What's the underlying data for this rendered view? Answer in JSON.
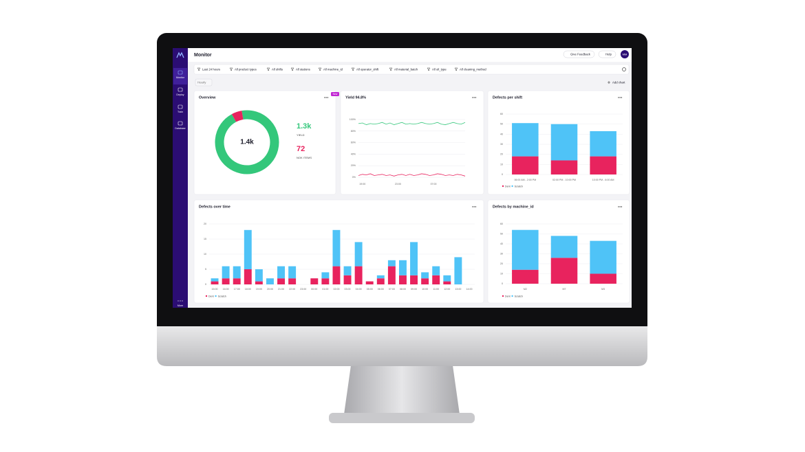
{
  "sidebar": {
    "items": [
      "Monitor",
      "Deploy",
      "Train",
      "Database"
    ],
    "more": "More"
  },
  "header": {
    "title": "Monitor",
    "feedback": "Give Feedback",
    "help": "Help",
    "avatar": "MM"
  },
  "filters": [
    "Last 24 hours",
    "All product types",
    "All shifts",
    "All stations",
    "All machine_id",
    "All operator_shift",
    "All material_batch",
    "All oil_type",
    "All cleaning_method"
  ],
  "toolbar": {
    "interval": "Hourly",
    "add_chart": "Add chart"
  },
  "chart_data": [
    {
      "type": "donut",
      "title": "Overview",
      "badge": "New",
      "center_label": "1.4k",
      "categories": [
        "YIELD",
        "NOK ITEMS"
      ],
      "values": [
        1300,
        72
      ],
      "value_labels": [
        "1.3k",
        "72"
      ],
      "colors": [
        "#34c77b",
        "#e8235e"
      ]
    },
    {
      "type": "line",
      "title": "Yield 94.8%",
      "categories": [
        null,
        "19:00",
        null,
        null,
        null,
        null,
        null,
        null,
        null,
        null,
        "23:00",
        null,
        null,
        null,
        null,
        null,
        null,
        null,
        null,
        "07:00",
        null,
        null,
        null,
        null,
        null,
        null,
        null,
        null
      ],
      "ylim": [
        0,
        100
      ],
      "yticks": [
        {
          "value": 0,
          "label": "0%"
        },
        {
          "value": 20,
          "label": "20%"
        },
        {
          "value": 40,
          "label": "40%"
        },
        {
          "value": 60,
          "label": "60%"
        },
        {
          "value": 80,
          "label": "80%"
        },
        {
          "value": 100,
          "label": "100%"
        }
      ],
      "series": [
        {
          "name": "Yield",
          "color": "#34c77b",
          "values": [
            93,
            94,
            91,
            93,
            92,
            93,
            95,
            92,
            94,
            91,
            93,
            95,
            92,
            93,
            92,
            93,
            95,
            93,
            92,
            93,
            95,
            92,
            91,
            93,
            95,
            93,
            92,
            95
          ]
        },
        {
          "name": "NOK",
          "color": "#e8235e",
          "values": [
            3,
            5,
            4,
            6,
            3,
            4,
            5,
            3,
            4,
            2,
            4,
            5,
            3,
            5,
            3,
            4,
            6,
            5,
            3,
            4,
            6,
            5,
            3,
            4,
            3,
            5,
            4,
            2
          ]
        }
      ]
    },
    {
      "type": "bar",
      "title": "Defects per shift",
      "categories": [
        "06:00 AM - 2:00 PM",
        "02:00 PM - 10:00 PM",
        "10:00 PM - 6:00 AM"
      ],
      "ylim": [
        0,
        60
      ],
      "yticks": [
        0,
        10,
        20,
        30,
        40,
        50,
        60
      ],
      "series": [
        {
          "name": "Dent",
          "color": "#e8235e",
          "values": [
            18,
            14,
            18
          ]
        },
        {
          "name": "Scratch",
          "color": "#4fc3f7",
          "values": [
            33,
            36,
            25
          ]
        }
      ]
    },
    {
      "type": "bar",
      "title": "Defects over time",
      "categories": [
        "15:00",
        "16:00",
        "17:00",
        "18:00",
        "19:00",
        "20:00",
        "21:00",
        "22:00",
        "23:00",
        "00:00",
        "01:00",
        "02:00",
        "03:00",
        "04:00",
        "05:00",
        "06:00",
        "07:00",
        "08:00",
        "09:00",
        "10:00",
        "11:00",
        "12:00",
        "13:00",
        "14:00"
      ],
      "ylim": [
        0,
        20
      ],
      "yticks": [
        0,
        5,
        10,
        15,
        20
      ],
      "series": [
        {
          "name": "Dent",
          "color": "#e8235e",
          "values": [
            1,
            2,
            2,
            5,
            1,
            0,
            2,
            2,
            0,
            2,
            2,
            6,
            3,
            6,
            1,
            2,
            6,
            3,
            3,
            2,
            3,
            1,
            0,
            0
          ]
        },
        {
          "name": "Scratch",
          "color": "#4fc3f7",
          "values": [
            1,
            4,
            4,
            13,
            4,
            2,
            4,
            4,
            0,
            0,
            2,
            12,
            3,
            8,
            0,
            1,
            2,
            5,
            11,
            2,
            3,
            2,
            9,
            0
          ]
        }
      ]
    },
    {
      "type": "bar",
      "title": "Defects by machine_id",
      "categories": [
        "M2",
        "M7",
        "M3"
      ],
      "ylim": [
        0,
        60
      ],
      "yticks": [
        0,
        10,
        20,
        30,
        40,
        50,
        60
      ],
      "series": [
        {
          "name": "Dent",
          "color": "#e8235e",
          "values": [
            14,
            26,
            10
          ]
        },
        {
          "name": "Scratch",
          "color": "#4fc3f7",
          "values": [
            40,
            22,
            33
          ]
        }
      ]
    }
  ]
}
